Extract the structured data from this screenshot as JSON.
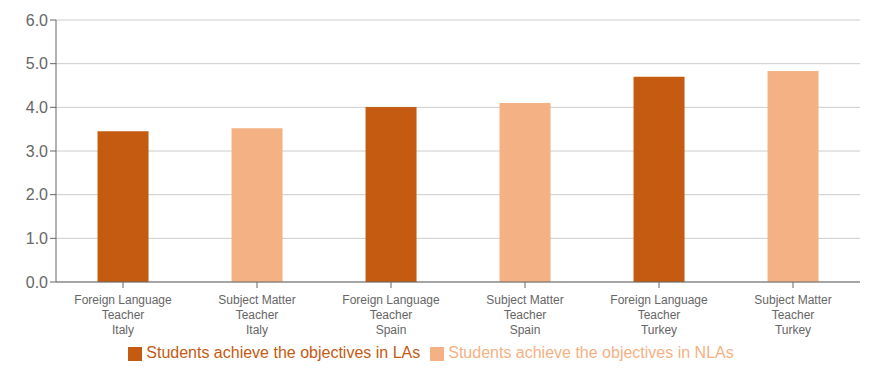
{
  "chart_data": {
    "type": "bar",
    "categories": [
      "Foreign Language\nTeacher\nItaly",
      "Subject Matter\nTeacher\nItaly",
      "Foreign Language\nTeacher\nSpain",
      "Subject Matter\nTeacher\nSpain",
      "Foreign Language\nTeacher\nTurkey",
      "Subject Matter\nTeacher\nTurkey"
    ],
    "series": [
      {
        "name": "Students achieve the objectives in LAs",
        "color": "#C55A11",
        "values": [
          3.45,
          null,
          4.01,
          null,
          4.7,
          null
        ]
      },
      {
        "name": "Students achieve the objectives in NLAs",
        "color": "#F4B183",
        "values": [
          null,
          3.52,
          null,
          4.1,
          null,
          4.83
        ]
      }
    ],
    "ylim": [
      0,
      6.0
    ],
    "yticks": [
      {
        "value": 0.0,
        "label": "0.0"
      },
      {
        "value": 1.0,
        "label": "1.0"
      },
      {
        "value": 2.0,
        "label": "2.0"
      },
      {
        "value": 3.0,
        "label": "3.0"
      },
      {
        "value": 4.0,
        "label": "4.0"
      },
      {
        "value": 5.0,
        "label": "5.0"
      },
      {
        "value": 6.0,
        "label": "6.0"
      }
    ],
    "grid": true
  }
}
